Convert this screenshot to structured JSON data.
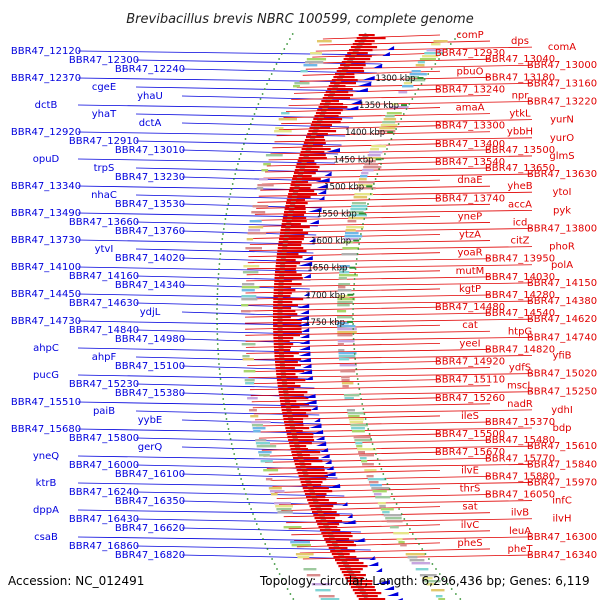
{
  "title": "Brevibacillus brevis NBRC 100599, complete genome",
  "footer": {
    "accession": "Accession: NC_012491",
    "summary": "Topology: circular; Length: 6,296,436 bp; Genes: 6,119"
  },
  "colors": {
    "plus_strand": "#e00000",
    "minus_strand": "#0000dd",
    "backbone": "#9a9a9a",
    "ruler_dots": "#2f8f2f"
  },
  "kbp_ticks": [
    "1300 kbp",
    "1350 kbp",
    "1400 kbp",
    "1450 kbp",
    "1500 kbp",
    "1550 kbp",
    "1600 kbp",
    "1650 kbp",
    "1700 kbp",
    "1750 kbp"
  ],
  "left_labels": [
    "BBR47_12120",
    "BBR47_12300",
    "BBR47_12240",
    "BBR47_12370",
    "cgeE",
    "yhaU",
    "dctB",
    "yhaT",
    "dctA",
    "BBR47_12920",
    "BBR47_12910",
    "BBR47_13010",
    "opuD",
    "trpS",
    "BBR47_13230",
    "BBR47_13340",
    "nhaC",
    "BBR47_13530",
    "BBR47_13490",
    "BBR47_13660",
    "BBR47_13760",
    "BBR47_13730",
    "ytvI",
    "BBR47_14020",
    "BBR47_14100",
    "BBR47_14160",
    "BBR47_14340",
    "BBR47_14450",
    "BBR47_14630",
    "ydjL",
    "BBR47_14730",
    "BBR47_14840",
    "BBR47_14980",
    "ahpC",
    "ahpF",
    "BBR47_15100",
    "pucG",
    "BBR47_15230",
    "BBR47_15380",
    "BBR47_15510",
    "paiB",
    "yybE",
    "BBR47_15680",
    "BBR47_15800",
    "gerQ",
    "yneQ",
    "BBR47_16000",
    "BBR47_16100",
    "ktrB",
    "BBR47_16240",
    "BBR47_16350",
    "dppA",
    "BBR47_16430",
    "BBR47_16620",
    "csaB",
    "BBR47_16860",
    "BBR47_16820"
  ],
  "right_labels": [
    "comP",
    "dps",
    "comA",
    "BBR47_12930",
    "BBR47_13040",
    "BBR47_13000",
    "pbuO",
    "BBR47_13180",
    "BBR47_13160",
    "BBR47_13240",
    "npr",
    "BBR47_13220",
    "amaA",
    "ytkL",
    "yurN",
    "BBR47_13300",
    "ybbH",
    "yurO",
    "BBR47_13400",
    "BBR47_13500",
    "glmS",
    "BBR47_13540",
    "BBR47_13650",
    "BBR47_13630",
    "dnaE",
    "yheB",
    "ytoI",
    "BBR47_13740",
    "accA",
    "pyk",
    "yneP",
    "icd",
    "BBR47_13800",
    "ytzA",
    "citZ",
    "phoR",
    "yoaR",
    "BBR47_13950",
    "polA",
    "mutM",
    "BBR47_14030",
    "BBR47_14150",
    "kgtP",
    "BBR47_14280",
    "BBR47_14380",
    "BBR47_14480",
    "BBR47_14540",
    "BBR47_14620",
    "cat",
    "htpG",
    "BBR47_14740",
    "yeeI",
    "BBR47_14820",
    "yfiB",
    "BBR47_14920",
    "ydfS",
    "BBR47_15020",
    "BBR47_15110",
    "mscL",
    "BBR47_15250",
    "BBR47_15260",
    "nadR",
    "ydhI",
    "ileS",
    "BBR47_15370",
    "bdp",
    "BBR47_15500",
    "BBR47_15480",
    "BBR47_15610",
    "BBR47_15670",
    "BBR47_15770",
    "BBR47_15840",
    "ilvE",
    "BBR47_15880",
    "BBR47_15970",
    "thrS",
    "BBR47_16050",
    "infC",
    "sat",
    "ilvB",
    "ilvH",
    "ilvC",
    "leuA",
    "BBR47_16300",
    "pheS",
    "pheT",
    "BBR47_16340"
  ]
}
